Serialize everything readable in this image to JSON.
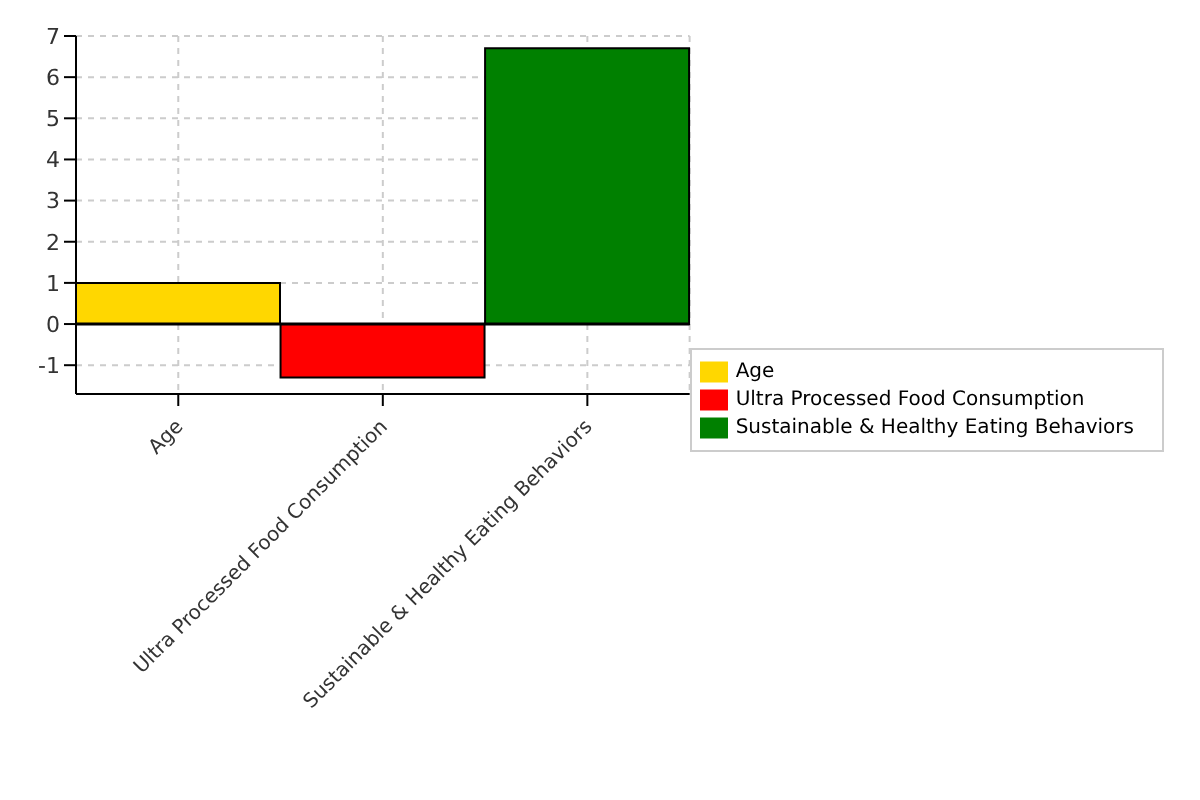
{
  "chart_data": {
    "type": "bar",
    "categories": [
      "Age",
      "Ultra Processed Food Consumption",
      "Sustainable & Healthy Eating Behaviors"
    ],
    "series": [
      {
        "name": "Age",
        "color": "#ffd700",
        "values": [
          1.0,
          null,
          null
        ]
      },
      {
        "name": "Ultra Processed Food Consumption",
        "color": "#ff0000",
        "values": [
          null,
          -1.3,
          null
        ]
      },
      {
        "name": "Sustainable & Healthy Eating Behaviors",
        "color": "#008000",
        "values": [
          null,
          null,
          6.7
        ]
      }
    ],
    "ylim": [
      -1.7,
      7
    ],
    "yticks": [
      -1,
      0,
      1,
      2,
      3,
      4,
      5,
      6,
      7
    ],
    "grid": true,
    "legend": "right",
    "ref_lines": [
      {
        "axis": "y",
        "value": 0,
        "color": "#000000"
      }
    ]
  }
}
